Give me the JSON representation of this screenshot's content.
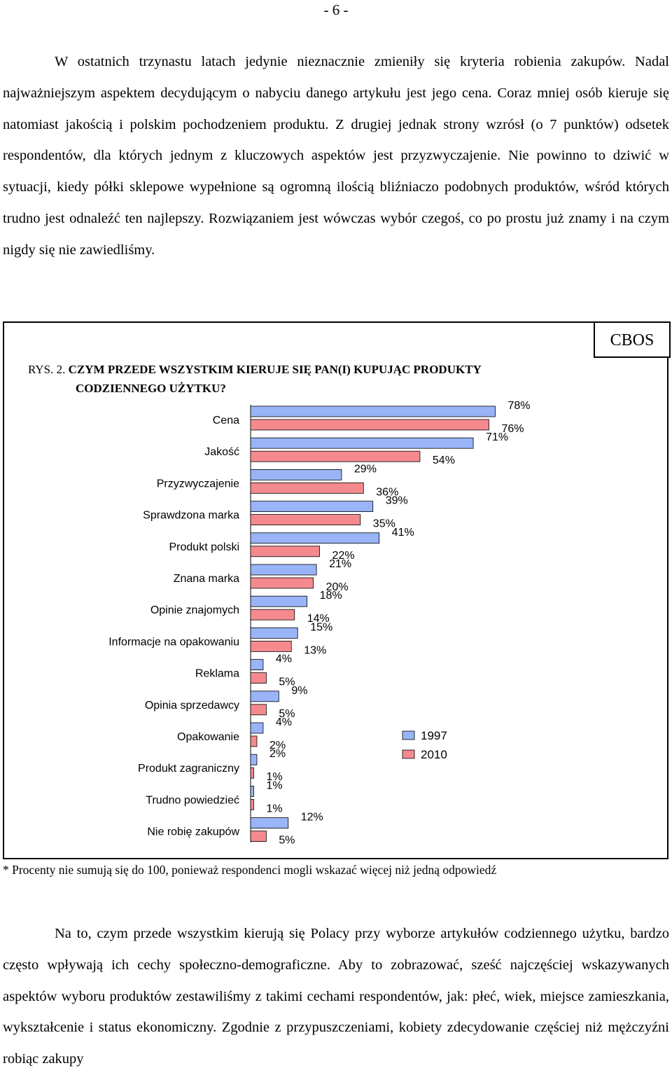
{
  "page_number": "- 6 -",
  "paragraph1": "W ostatnich trzynastu latach jedynie nieznacznie zmieniły się kryteria robienia zakupów. Nadal najważniejszym aspektem decydującym o nabyciu danego artykułu jest jego cena. Coraz mniej osób kieruje się natomiast jakością i polskim pochodzeniem produktu. Z drugiej jednak strony wzrósł (o 7 punktów) odsetek respondentów, dla których jednym z kluczowych aspektów jest przyzwyczajenie. Nie powinno to dziwić w sytuacji, kiedy półki sklepowe wypełnione są ogromną ilością bliźniaczo podobnych produktów, wśród których trudno jest odnaleźć ten najlepszy. Rozwiązaniem jest wówczas wybór czegoś, co po prostu już znamy i na czym nigdy się nie zawiedliśmy.",
  "figure": {
    "source": "CBOS",
    "label": "RYS. 2.",
    "title_line1": "CZYM PRZEDE WSZYSTKIM KIERUJE SIĘ PAN(I) KUPUJĄC PRODUKTY",
    "title_line2": "CODZIENNEGO UŻYTKU?"
  },
  "chart_data": {
    "type": "bar",
    "orientation": "horizontal",
    "categories": [
      "Cena",
      "Jakość",
      "Przyzwyczajenie",
      "Sprawdzona marka",
      "Produkt polski",
      "Znana marka",
      "Opinie znajomych",
      "Informacje na opakowaniu",
      "Reklama",
      "Opinia sprzedawcy",
      "Opakowanie",
      "Produkt zagraniczny",
      "Trudno powiedzieć",
      "Nie robię zakupów"
    ],
    "series": [
      {
        "name": "1997",
        "color": "#99b4f7",
        "values": [
          78,
          71,
          29,
          39,
          41,
          21,
          18,
          15,
          4,
          9,
          4,
          2,
          1,
          12
        ]
      },
      {
        "name": "2010",
        "color": "#f58a8e",
        "values": [
          76,
          54,
          36,
          35,
          22,
          20,
          14,
          13,
          5,
          5,
          2,
          1,
          1,
          5
        ]
      }
    ],
    "value_suffix": "%",
    "legend_position": "right-middle"
  },
  "footnote": "* Procenty nie sumują się do 100, ponieważ respondenci mogli wskazać więcej niż jedną odpowiedź",
  "paragraph2": "Na to, czym przede wszystkim kierują się Polacy przy wyborze artykułów codziennego użytku, bardzo często wpływają ich cechy społeczno-demograficzne. Aby to zobrazować, sześć najczęściej wskazywanych aspektów wyboru produktów zestawiliśmy z takimi cechami respondentów, jak: płeć, wiek, miejsce zamieszkania, wykształcenie i status ekonomiczny. Zgodnie z przypuszczeniami, kobiety zdecydowanie częściej niż mężczyźni robiąc zakupy"
}
